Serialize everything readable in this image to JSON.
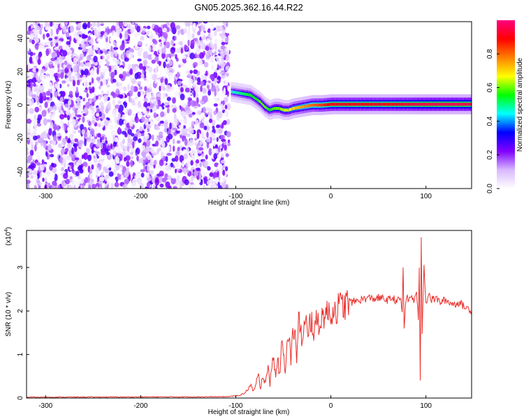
{
  "chart_data": [
    {
      "type": "heatmap",
      "title": "GN05.2025.362.16.44.R22",
      "xlabel": "Height of straight line (km)",
      "ylabel": "Frequency (Hz)",
      "xlim": [
        -320,
        148
      ],
      "ylim": [
        -50,
        50
      ],
      "x_ticks": [
        -300,
        -200,
        -100,
        0,
        100
      ],
      "y_ticks": [
        -40,
        -20,
        0,
        20,
        40
      ],
      "colorbar": {
        "label": "Normalized spectral amplitude",
        "ticks": [
          "0.0",
          "0.2",
          "0.4",
          "0.6",
          "0.8"
        ],
        "range": [
          0,
          1
        ],
        "colors": [
          "#ffffff",
          "#d8b8ff",
          "#8000ff",
          "#0000ff",
          "#00ffff",
          "#00ff00",
          "#ffff00",
          "#ff8000",
          "#ff0000",
          "#ff0080"
        ]
      },
      "noise_region_x": [
        -320,
        -107
      ],
      "ridge": {
        "x": [
          -105,
          -95,
          -85,
          -80,
          -75,
          -70,
          -65,
          -60,
          -55,
          -50,
          -45,
          -40,
          -30,
          -20,
          -10,
          0,
          20,
          60,
          100,
          148
        ],
        "freq": [
          8,
          7,
          6,
          4,
          2,
          -1,
          -3,
          -2,
          -2,
          -3,
          -3,
          -2,
          -1,
          0,
          0,
          0.5,
          0.5,
          0.5,
          0.5,
          0.5
        ],
        "amplitude": [
          0.45,
          0.5,
          0.55,
          0.55,
          0.6,
          0.6,
          0.55,
          0.6,
          0.6,
          0.65,
          0.65,
          0.7,
          0.75,
          0.8,
          0.85,
          0.9,
          0.9,
          0.9,
          0.95,
          0.95
        ]
      }
    },
    {
      "type": "line",
      "title": "",
      "xlabel": "Height of straight line (km)",
      "ylabel": "SNR (10 * v/v)",
      "multiplier_label": "(x10",
      "multiplier_exp": "4",
      "xlim": [
        -320,
        148
      ],
      "ylim": [
        0,
        3.85
      ],
      "x_ticks": [
        -300,
        -200,
        -100,
        0,
        100
      ],
      "y_ticks": [
        0,
        1,
        2,
        3
      ],
      "color": "#e8302c",
      "series": [
        {
          "x": [
            -320,
            -110,
            -105,
            -100,
            -95,
            -90,
            -88,
            -86,
            -84,
            -82,
            -80,
            -78,
            -76,
            -74,
            -72,
            -70,
            -68,
            -66,
            -64,
            -62,
            -60,
            -58,
            -56,
            -54,
            -52,
            -50,
            -48,
            -46,
            -44,
            -42,
            -40,
            -38,
            -36,
            -34,
            -32,
            -30,
            -28,
            -26,
            -24,
            -22,
            -20,
            -18,
            -16,
            -14,
            -12,
            -10,
            -8,
            -6,
            -4,
            -2,
            0,
            5,
            10,
            15,
            20,
            25,
            30,
            35,
            40,
            45,
            50,
            55,
            60,
            65,
            70,
            73,
            75,
            76,
            77,
            79,
            82,
            85,
            88,
            90,
            92,
            93,
            94,
            95,
            96,
            97,
            98,
            100,
            103,
            106,
            110,
            115,
            120,
            125,
            130,
            135,
            140,
            145,
            148
          ],
          "values": [
            0.02,
            0.03,
            0.04,
            0.05,
            0.07,
            0.12,
            0.18,
            0.25,
            0.3,
            0.15,
            0.22,
            0.4,
            0.5,
            0.2,
            0.55,
            0.35,
            0.5,
            0.7,
            0.3,
            0.8,
            0.9,
            0.45,
            1.0,
            0.5,
            1.1,
            1.2,
            0.6,
            1.4,
            1.5,
            0.8,
            1.5,
            1.6,
            0.9,
            1.7,
            1.75,
            1.2,
            1.6,
            1.7,
            1.3,
            1.75,
            1.8,
            1.5,
            1.65,
            1.85,
            1.7,
            1.8,
            1.9,
            2.0,
            1.9,
            2.0,
            1.95,
            2.05,
            2.1,
            2.15,
            2.2,
            2.22,
            2.25,
            2.28,
            2.3,
            2.28,
            2.3,
            2.28,
            2.25,
            2.3,
            2.22,
            2.3,
            2.0,
            3.0,
            1.6,
            2.3,
            2.25,
            2.35,
            2.2,
            2.5,
            1.8,
            2.9,
            0.4,
            3.8,
            1.5,
            2.4,
            3.0,
            2.2,
            2.4,
            2.25,
            2.3,
            2.2,
            2.25,
            2.2,
            2.15,
            2.2,
            2.1,
            2.05,
            2.0
          ]
        }
      ]
    }
  ]
}
